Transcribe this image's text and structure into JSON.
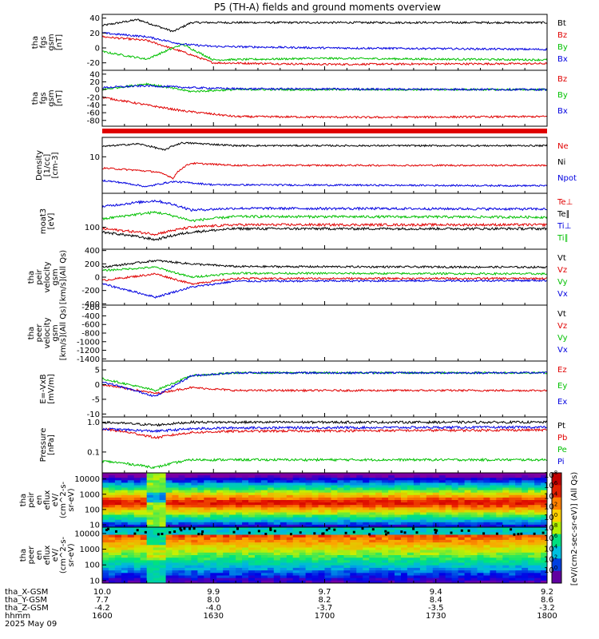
{
  "title": "P5 (TH-A) fields and ground moments overview",
  "time_axis": {
    "ticks": [
      "1600",
      "1630",
      "1700",
      "1730",
      "1800"
    ],
    "rows": [
      {
        "label": "tha_X-GSM",
        "values": [
          "10.0",
          "9.9",
          "9.7",
          "9.4",
          "9.2"
        ]
      },
      {
        "label": "tha_Y-GSM",
        "values": [
          "7.7",
          "8.0",
          "8.2",
          "8.4",
          "8.6"
        ]
      },
      {
        "label": "tha_Z-GSM",
        "values": [
          "-4.2",
          "-4.0",
          "-3.7",
          "-3.5",
          "-3.2"
        ]
      },
      {
        "label": "hhmm",
        "values": [
          "1600",
          "1630",
          "1700",
          "1730",
          "1800"
        ]
      }
    ],
    "date": "2025 May 09"
  },
  "colorbar": {
    "label": "[eV/(cm2-sec-sr-eV)] (All Qs)",
    "ticks": [
      "10",
      "10",
      "10",
      "10",
      "10",
      "10",
      "10",
      "10",
      "10",
      "10"
    ],
    "exponents": [
      "8",
      "6",
      "4",
      "2",
      "0",
      "8",
      "6",
      "4",
      "2",
      "0"
    ]
  },
  "chart_data": [
    {
      "type": "line",
      "ylabel": "tha fgs gsm [nT]",
      "ylabel_lines": [
        "tha",
        "fgs",
        "gsm",
        "[nT]"
      ],
      "ylim": [
        -30,
        45
      ],
      "yticks": [
        "40",
        "20",
        "0",
        "-20"
      ],
      "ytick_values": [
        40,
        20,
        0,
        -20
      ],
      "series": [
        {
          "name": "Bt",
          "color": "#000000",
          "levels": [
            [
              0,
              30
            ],
            [
              0.08,
              38
            ],
            [
              0.16,
              22
            ],
            [
              0.2,
              34
            ],
            [
              0.4,
              34
            ],
            [
              1,
              34
            ]
          ]
        },
        {
          "name": "Bz",
          "color": "#e00000",
          "levels": [
            [
              0,
              15
            ],
            [
              0.1,
              10
            ],
            [
              0.18,
              -5
            ],
            [
              0.25,
              -20
            ],
            [
              0.5,
              -22
            ],
            [
              1,
              -21
            ]
          ]
        },
        {
          "name": "By",
          "color": "#00c000",
          "levels": [
            [
              0,
              -5
            ],
            [
              0.1,
              -15
            ],
            [
              0.18,
              5
            ],
            [
              0.25,
              -16
            ],
            [
              0.5,
              -14
            ],
            [
              1,
              -16
            ]
          ]
        },
        {
          "name": "Bx",
          "color": "#0000e0",
          "levels": [
            [
              0,
              20
            ],
            [
              0.1,
              15
            ],
            [
              0.18,
              5
            ],
            [
              0.25,
              2
            ],
            [
              0.5,
              0
            ],
            [
              1,
              -2
            ]
          ]
        }
      ]
    },
    {
      "type": "line",
      "ylabel": "tha fgs gsm [nT]",
      "ylabel_lines": [
        "tha",
        "fgs",
        "gsm",
        "[nT]"
      ],
      "ylim": [
        -95,
        50
      ],
      "yticks": [
        "40",
        "20",
        "0",
        "-20",
        "-40",
        "-60",
        "-80"
      ],
      "ytick_values": [
        40,
        20,
        0,
        -20,
        -40,
        -60,
        -80
      ],
      "series": [
        {
          "name": "Bz",
          "color": "#e00000",
          "levels": [
            [
              0,
              -20
            ],
            [
              0.1,
              -40
            ],
            [
              0.18,
              -55
            ],
            [
              0.3,
              -70
            ],
            [
              0.6,
              -72
            ],
            [
              1,
              -70
            ]
          ]
        },
        {
          "name": "By",
          "color": "#00c000",
          "levels": [
            [
              0,
              0
            ],
            [
              0.1,
              15
            ],
            [
              0.2,
              -5
            ],
            [
              0.3,
              0
            ],
            [
              1,
              0
            ]
          ]
        },
        {
          "name": "Bx",
          "color": "#0000e0",
          "levels": [
            [
              0,
              5
            ],
            [
              0.1,
              10
            ],
            [
              0.2,
              5
            ],
            [
              0.3,
              2
            ],
            [
              1,
              0
            ]
          ]
        }
      ]
    },
    {
      "type": "line",
      "ylabel": "Density [1/cc] [cm-3]",
      "ylabel_lines": [
        "Density",
        "[1/cc]",
        "[cm-3]"
      ],
      "scale": "log",
      "ylim": [
        0.2,
        80
      ],
      "yticks": [
        "10"
      ],
      "ytick_values": [
        10
      ],
      "series": [
        {
          "name": "Ne",
          "color": "#e00000",
          "levels": [
            [
              0,
              3
            ],
            [
              0.12,
              2
            ],
            [
              0.16,
              1
            ],
            [
              0.2,
              5
            ],
            [
              0.3,
              4
            ],
            [
              1,
              4
            ]
          ]
        },
        {
          "name": "Ni",
          "color": "#000000",
          "levels": [
            [
              0,
              30
            ],
            [
              0.08,
              40
            ],
            [
              0.14,
              20
            ],
            [
              0.18,
              45
            ],
            [
              0.3,
              33
            ],
            [
              1,
              33
            ]
          ]
        },
        {
          "name": "Npot",
          "color": "#0000e0",
          "levels": [
            [
              0,
              0.8
            ],
            [
              0.1,
              0.4
            ],
            [
              0.16,
              0.7
            ],
            [
              0.25,
              0.5
            ],
            [
              1,
              0.45
            ]
          ]
        }
      ]
    },
    {
      "type": "line",
      "ylabel": "moat3 [eV]",
      "ylabel_lines": [
        "moat3",
        "[eV]"
      ],
      "scale": "log",
      "ylim": [
        20,
        1200
      ],
      "yticks": [
        "100"
      ],
      "ytick_values": [
        100
      ],
      "series": [
        {
          "name": "Te⊥",
          "color": "#e00000",
          "levels": [
            [
              0,
              90
            ],
            [
              0.12,
              60
            ],
            [
              0.2,
              100
            ],
            [
              0.3,
              120
            ],
            [
              1,
              120
            ]
          ]
        },
        {
          "name": "Te∥",
          "color": "#000000",
          "levels": [
            [
              0,
              70
            ],
            [
              0.12,
              40
            ],
            [
              0.2,
              70
            ],
            [
              0.3,
              90
            ],
            [
              1,
              90
            ]
          ]
        },
        {
          "name": "Ti⊥",
          "color": "#0000e0",
          "levels": [
            [
              0,
              450
            ],
            [
              0.12,
              700
            ],
            [
              0.2,
              350
            ],
            [
              0.3,
              400
            ],
            [
              1,
              380
            ]
          ]
        },
        {
          "name": "Ti∥",
          "color": "#00c000",
          "levels": [
            [
              0,
              180
            ],
            [
              0.12,
              300
            ],
            [
              0.2,
              160
            ],
            [
              0.3,
              220
            ],
            [
              1,
              210
            ]
          ]
        }
      ]
    },
    {
      "type": "line",
      "ylabel": "tha peir velocity gsm [km/s] (All Qs)",
      "ylabel_lines": [
        "tha",
        "peir",
        "velocity",
        "gsm",
        "[km/s](All Qs)"
      ],
      "ylim": [
        -420,
        420
      ],
      "yticks": [
        "400",
        "200",
        "0",
        "-200",
        "-400"
      ],
      "ytick_values": [
        400,
        200,
        0,
        -200,
        -400
      ],
      "series": [
        {
          "name": "Vt",
          "color": "#000000",
          "levels": [
            [
              0,
              150
            ],
            [
              0.12,
              250
            ],
            [
              0.2,
              200
            ],
            [
              0.3,
              160
            ],
            [
              1,
              150
            ]
          ]
        },
        {
          "name": "Vz",
          "color": "#e00000",
          "levels": [
            [
              0,
              -50
            ],
            [
              0.12,
              50
            ],
            [
              0.2,
              -100
            ],
            [
              0.3,
              -20
            ],
            [
              1,
              -20
            ]
          ]
        },
        {
          "name": "Vy",
          "color": "#00c000",
          "levels": [
            [
              0,
              100
            ],
            [
              0.12,
              150
            ],
            [
              0.2,
              0
            ],
            [
              0.3,
              60
            ],
            [
              1,
              50
            ]
          ]
        },
        {
          "name": "Vx",
          "color": "#0000e0",
          "levels": [
            [
              0,
              -100
            ],
            [
              0.12,
              -300
            ],
            [
              0.2,
              -150
            ],
            [
              0.3,
              -60
            ],
            [
              1,
              -50
            ]
          ]
        }
      ]
    },
    {
      "type": "line",
      "ylabel": "tha peer velocity gsm [km/s] (All Qs)",
      "ylabel_lines": [
        "tha",
        "peer",
        "velocity",
        "gsm",
        "[km/s](All Qs)"
      ],
      "ylim": [
        -1450,
        -150
      ],
      "yticks": [
        "-200",
        "-400",
        "-600",
        "-800",
        "-1000",
        "-1200",
        "-1400"
      ],
      "ytick_values": [
        -200,
        -400,
        -600,
        -800,
        -1000,
        -1200,
        -1400
      ],
      "series": [
        {
          "name": "Vt",
          "color": "#000000"
        },
        {
          "name": "Vz",
          "color": "#e00000"
        },
        {
          "name": "Vy",
          "color": "#00c000"
        },
        {
          "name": "Vx",
          "color": "#0000e0"
        }
      ]
    },
    {
      "type": "line",
      "ylabel": "E=-VxB [mV/m]",
      "ylabel_lines": [
        "E=-VxB",
        "[mV/m]"
      ],
      "ylim": [
        -11,
        8
      ],
      "yticks": [
        "5",
        "0",
        "-5",
        "-10"
      ],
      "ytick_values": [
        5,
        0,
        -5,
        -10
      ],
      "series": [
        {
          "name": "Ez",
          "color": "#e00000",
          "levels": [
            [
              0,
              0
            ],
            [
              0.12,
              -3
            ],
            [
              0.2,
              -1
            ],
            [
              0.3,
              -2
            ],
            [
              1,
              -2
            ]
          ]
        },
        {
          "name": "Ey",
          "color": "#00c000",
          "levels": [
            [
              0,
              2
            ],
            [
              0.12,
              -2
            ],
            [
              0.2,
              3
            ],
            [
              0.3,
              4
            ],
            [
              1,
              4
            ]
          ]
        },
        {
          "name": "Ex",
          "color": "#0000e0",
          "levels": [
            [
              0,
              1
            ],
            [
              0.12,
              -4
            ],
            [
              0.2,
              3
            ],
            [
              0.3,
              4
            ],
            [
              1,
              4
            ]
          ]
        }
      ]
    },
    {
      "type": "line",
      "ylabel": "Pressure [nPa]",
      "ylabel_lines": [
        "Pressure",
        "[nPa]"
      ],
      "scale": "log",
      "ylim": [
        0.02,
        1.5
      ],
      "yticks": [
        "1.0",
        "0.1"
      ],
      "ytick_values": [
        1.0,
        0.1
      ],
      "series": [
        {
          "name": "Pt",
          "color": "#000000",
          "levels": [
            [
              0,
              1.0
            ],
            [
              0.12,
              0.8
            ],
            [
              0.2,
              1.0
            ],
            [
              1,
              1.0
            ]
          ]
        },
        {
          "name": "Pb",
          "color": "#e00000",
          "levels": [
            [
              0,
              0.6
            ],
            [
              0.12,
              0.3
            ],
            [
              0.2,
              0.45
            ],
            [
              0.3,
              0.5
            ],
            [
              1,
              0.55
            ]
          ]
        },
        {
          "name": "Pe",
          "color": "#00c000",
          "levels": [
            [
              0,
              0.05
            ],
            [
              0.12,
              0.03
            ],
            [
              0.2,
              0.055
            ],
            [
              1,
              0.055
            ]
          ]
        },
        {
          "name": "Pi",
          "color": "#0000e0",
          "levels": [
            [
              0,
              0.6
            ],
            [
              0.12,
              0.5
            ],
            [
              0.2,
              0.6
            ],
            [
              0.3,
              0.65
            ],
            [
              1,
              0.68
            ]
          ]
        }
      ]
    },
    {
      "type": "heatmap",
      "ylabel": "tha peir en eflux eV/(cm^2-s-sr-eV)",
      "ylabel_lines": [
        "tha",
        "peir",
        "en",
        "eflux",
        "eV/",
        "(cm^2-s-",
        "sr-eV)"
      ],
      "scale": "log",
      "ylim": [
        7,
        25000
      ],
      "yticks": [
        "10000",
        "1000",
        "100",
        "10"
      ],
      "ytick_values": [
        10000,
        1000,
        100,
        10
      ]
    },
    {
      "type": "heatmap",
      "ylabel": "tha peer en eflux eV/(cm^2-s-sr-eV)",
      "ylabel_lines": [
        "tha",
        "peer",
        "en",
        "eflux",
        "eV/",
        "(cm^2-s-",
        "sr-eV)"
      ],
      "scale": "log",
      "ylim": [
        7,
        25000
      ],
      "yticks": [
        "10000",
        "1000",
        "100",
        "10"
      ],
      "ytick_values": [
        10000,
        1000,
        100,
        10
      ]
    }
  ]
}
